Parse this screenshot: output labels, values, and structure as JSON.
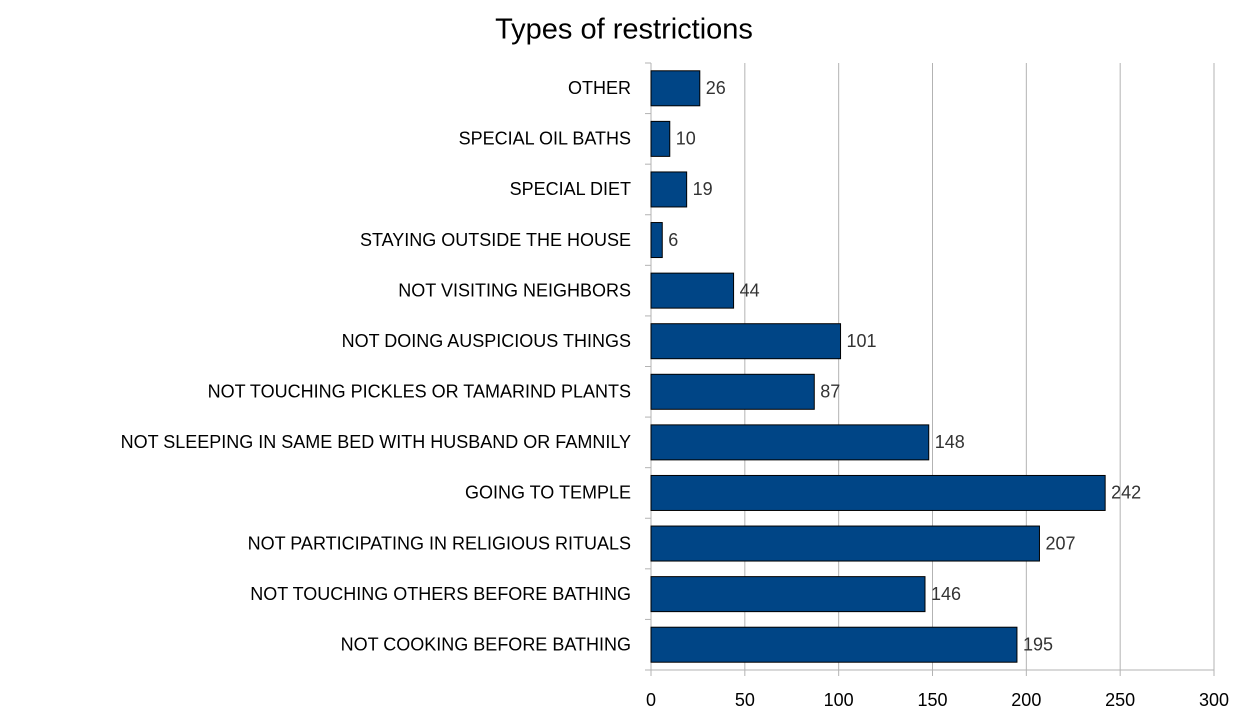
{
  "chart_data": {
    "type": "bar",
    "orientation": "horizontal",
    "title": "Types of restrictions",
    "categories": [
      "OTHER",
      "SPECIAL OIL BATHS",
      "SPECIAL DIET",
      "STAYING OUTSIDE THE HOUSE",
      "NOT VISITING NEIGHBORS",
      "NOT DOING AUSPICIOUS THINGS",
      "NOT TOUCHING PICKLES OR TAMARIND PLANTS",
      "NOT SLEEPING IN SAME BED WITH HUSBAND OR FAMNILY",
      "GOING TO TEMPLE",
      "NOT PARTICIPATING IN RELIGIOUS RITUALS",
      "NOT TOUCHING OTHERS BEFORE BATHING",
      "NOT COOKING BEFORE BATHING"
    ],
    "values": [
      26,
      10,
      19,
      6,
      44,
      101,
      87,
      148,
      242,
      207,
      146,
      195
    ],
    "color": "#004586",
    "xlim": [
      0,
      300
    ],
    "xticks": [
      0,
      50,
      100,
      150,
      200,
      250,
      300
    ],
    "grid": true
  }
}
